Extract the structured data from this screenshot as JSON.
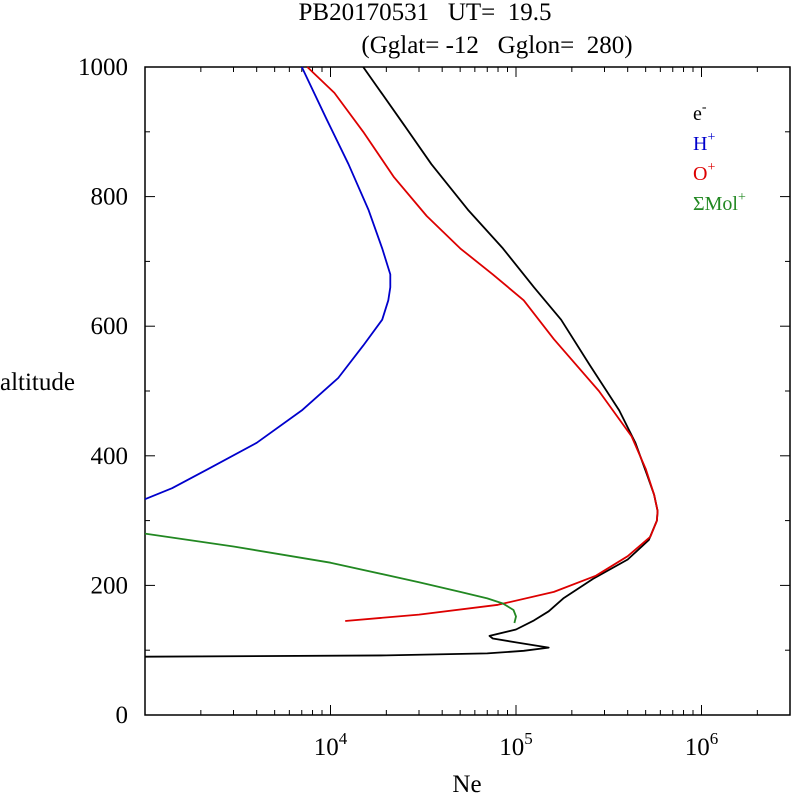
{
  "chart_data": {
    "type": "line",
    "title_line1": "PB20170531   UT=  19.5",
    "title_line2": "(Gglat= -12   Gglon=  280)",
    "xlabel": "Ne",
    "ylabel": "altitude",
    "xscale": "log",
    "xlim": [
      1000,
      3000000
    ],
    "ylim": [
      0,
      1000
    ],
    "x_ticks": [
      {
        "value": 10000,
        "base": "10",
        "exp": "4"
      },
      {
        "value": 100000,
        "base": "10",
        "exp": "5"
      },
      {
        "value": 1000000,
        "base": "10",
        "exp": "6"
      }
    ],
    "y_ticks": [
      {
        "value": 0,
        "label": "0"
      },
      {
        "value": 200,
        "label": "200"
      },
      {
        "value": 400,
        "label": "400"
      },
      {
        "value": 600,
        "label": "600"
      },
      {
        "value": 800,
        "label": "800"
      },
      {
        "value": 1000,
        "label": "1000"
      }
    ],
    "legend_position": "top-right",
    "series": [
      {
        "name": "e-",
        "label_base": "e",
        "label_sup": "-",
        "color": "#000000",
        "points": [
          [
            1000,
            90
          ],
          [
            20000,
            92
          ],
          [
            70000,
            95
          ],
          [
            110000,
            99
          ],
          [
            150000,
            104
          ],
          [
            100000,
            112
          ],
          [
            75000,
            118
          ],
          [
            72000,
            122
          ],
          [
            100000,
            132
          ],
          [
            125000,
            146
          ],
          [
            150000,
            160
          ],
          [
            180000,
            180
          ],
          [
            260000,
            210
          ],
          [
            400000,
            240
          ],
          [
            520000,
            270
          ],
          [
            575000,
            300
          ],
          [
            580000,
            315
          ],
          [
            555000,
            340
          ],
          [
            510000,
            370
          ],
          [
            440000,
            420
          ],
          [
            360000,
            470
          ],
          [
            250000,
            540
          ],
          [
            175000,
            610
          ],
          [
            125000,
            660
          ],
          [
            85000,
            720
          ],
          [
            55000,
            780
          ],
          [
            35000,
            850
          ],
          [
            25000,
            910
          ],
          [
            15000,
            1000
          ]
        ]
      },
      {
        "name": "H+",
        "label_base": "H",
        "label_sup": "+",
        "color": "#0000cc",
        "points": [
          [
            1000,
            333
          ],
          [
            1400,
            350
          ],
          [
            2200,
            380
          ],
          [
            4000,
            420
          ],
          [
            7000,
            470
          ],
          [
            11000,
            520
          ],
          [
            15000,
            570
          ],
          [
            19000,
            610
          ],
          [
            20500,
            640
          ],
          [
            21000,
            660
          ],
          [
            21000,
            680
          ],
          [
            19000,
            720
          ],
          [
            16000,
            780
          ],
          [
            12500,
            850
          ],
          [
            9500,
            920
          ],
          [
            7000,
            1000
          ]
        ]
      },
      {
        "name": "O+",
        "label_base": "O",
        "label_sup": "+",
        "color": "#dd0000",
        "points": [
          [
            12000,
            145
          ],
          [
            30000,
            155
          ],
          [
            80000,
            170
          ],
          [
            160000,
            190
          ],
          [
            270000,
            215
          ],
          [
            400000,
            245
          ],
          [
            530000,
            275
          ],
          [
            575000,
            300
          ],
          [
            580000,
            315
          ],
          [
            555000,
            340
          ],
          [
            500000,
            380
          ],
          [
            420000,
            430
          ],
          [
            280000,
            500
          ],
          [
            160000,
            580
          ],
          [
            110000,
            640
          ],
          [
            75000,
            680
          ],
          [
            50000,
            720
          ],
          [
            33000,
            770
          ],
          [
            22000,
            830
          ],
          [
            15000,
            900
          ],
          [
            10500,
            960
          ],
          [
            7500,
            1000
          ]
        ]
      },
      {
        "name": "ΣMol+",
        "label_base": "ΣMol",
        "label_sup": "+",
        "color": "#228822",
        "points": [
          [
            1000,
            280
          ],
          [
            3000,
            260
          ],
          [
            10000,
            235
          ],
          [
            30000,
            205
          ],
          [
            50000,
            190
          ],
          [
            70000,
            180
          ],
          [
            85000,
            172
          ],
          [
            97000,
            162
          ],
          [
            100000,
            152
          ],
          [
            98000,
            142
          ]
        ]
      }
    ]
  }
}
